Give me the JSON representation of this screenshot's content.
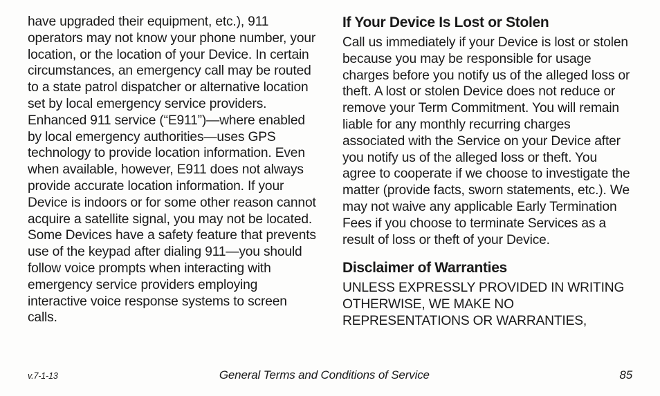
{
  "left_column": {
    "body": "have upgraded their equipment, etc.), 911 operators may not know your phone number, your location, or the location of your Device. In certain circumstances, an emergency call may be routed to a state patrol dispatcher or alternative location set by local emergency service providers. Enhanced 911 service (“E911”)—where enabled by local emergency authorities—uses GPS technology to provide location information. Even when available, however, E911 does not always provide accurate location information. If your Device is indoors or for some other reason cannot acquire a satellite signal, you may not be located. Some Devices have a safety feature that prevents use of the keypad after dialing 911—you should follow voice prompts when interacting with emergency service providers employing interactive voice response systems to screen calls."
  },
  "right_column": {
    "sections": [
      {
        "heading": "If Your Device Is Lost or Stolen",
        "body": "Call us immediately if your Device is lost or stolen because you may be responsible for usage charges before you notify us of the alleged loss or theft. A lost or stolen Device does not reduce or remove your Term Commitment. You will remain liable for any monthly recurring charges associated with the Service on your Device after you notify us of the alleged loss or theft. You agree to cooperate if we choose to investigate the matter (provide facts, sworn statements, etc.). We may not waive any applicable Early Termination Fees if you choose to terminate Services as a result of loss or theft of your Device."
      },
      {
        "heading": "Disclaimer of Warranties",
        "body": "UNLESS EXPRESSLY PROVIDED IN WRITING OTHERWISE, WE MAKE NO REPRESENTATIONS OR WARRANTIES,"
      }
    ]
  },
  "footer": {
    "version": "v.7-1-13",
    "title": "General Terms and Conditions of Service",
    "page": "85"
  }
}
